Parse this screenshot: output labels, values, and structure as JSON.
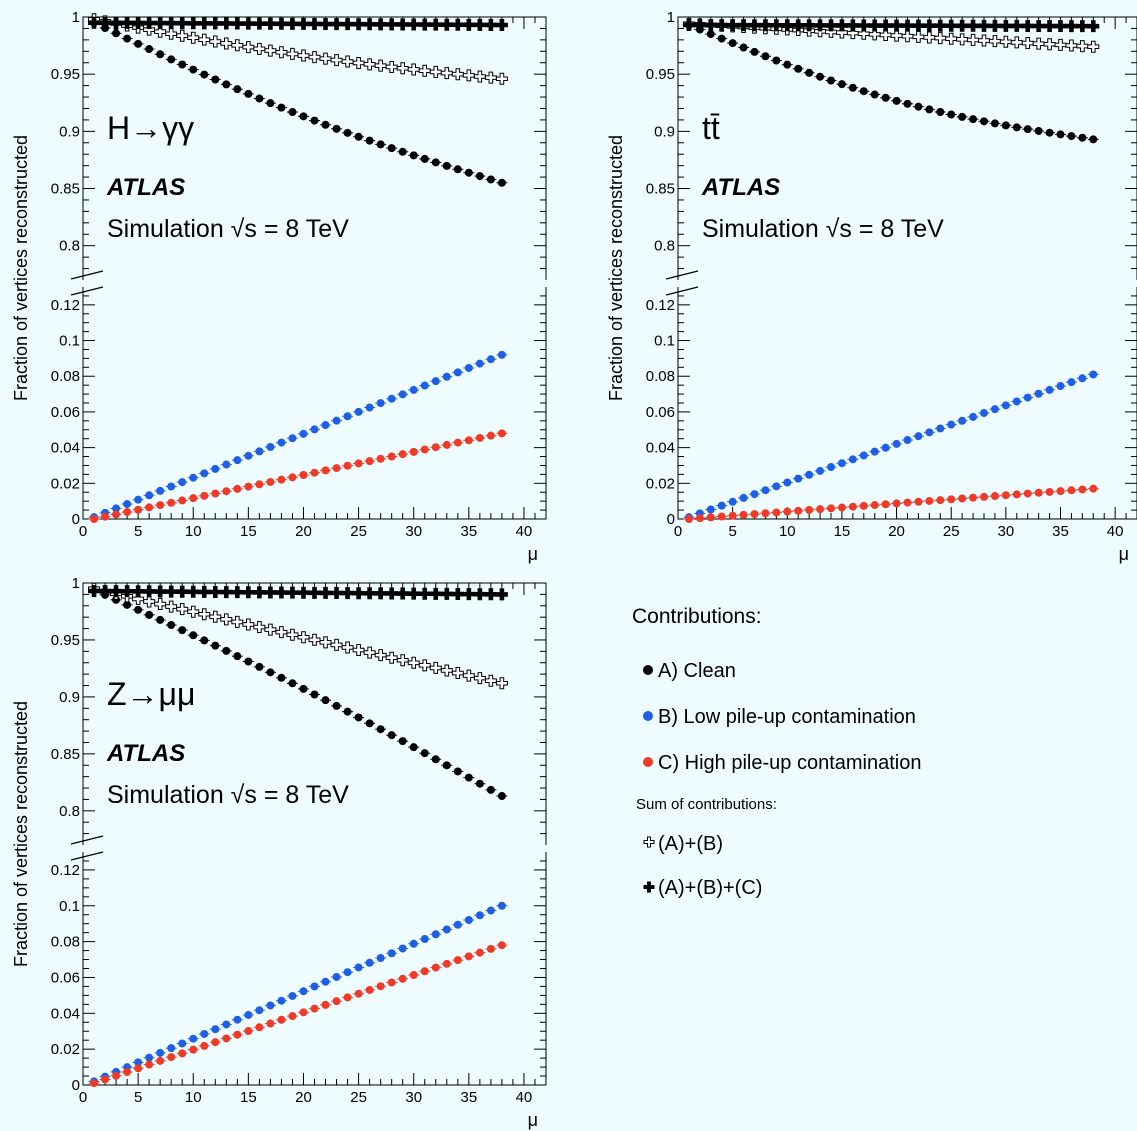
{
  "colors": {
    "clean": "#000000",
    "low": "#1f5fe6",
    "high": "#f03a28",
    "background": "#eefcff"
  },
  "legend": {
    "title": "Contributions:",
    "items": [
      {
        "marker": "filled-circle",
        "color": "#000000",
        "label": "A) Clean"
      },
      {
        "marker": "filled-circle",
        "color": "#1f5fe6",
        "label": "B) Low pile-up contamination"
      },
      {
        "marker": "filled-circle",
        "color": "#f03a28",
        "label": "C) High pile-up contamination"
      }
    ],
    "sum_title": "Sum of contributions:",
    "sum_items": [
      {
        "marker": "open-cross",
        "label": "(A)+(B)"
      },
      {
        "marker": "filled-cross",
        "label": "(A)+(B)+(C)"
      }
    ]
  },
  "chart_data": [
    {
      "type": "scatter",
      "process": "H→γγ",
      "atlas": "ATLAS",
      "simulation": "Simulation √s = 8 TeV",
      "xlabel": "μ",
      "ylabel": "Fraction of vertices reconstructed",
      "xlim": [
        0,
        42
      ],
      "ylim_upper": [
        0.77,
        1.0
      ],
      "ylim_lower": [
        0,
        0.13
      ],
      "xticks": [
        "0",
        "5",
        "10",
        "15",
        "20",
        "25",
        "30",
        "35",
        "40"
      ],
      "yticks_upper": [
        "0.8",
        "0.85",
        "0.9",
        "0.95",
        "1"
      ],
      "yticks_lower": [
        "0",
        "0.02",
        "0.04",
        "0.06",
        "0.08",
        "0.1",
        "0.12"
      ],
      "series": [
        {
          "name": "A) Clean",
          "marker": "filled-circle",
          "color": "#000000",
          "x_start": 1,
          "x_end": 38,
          "y_start": 0.995,
          "y_end": 0.855,
          "curve": -0.01
        },
        {
          "name": "(A)+(B)",
          "marker": "open-cross",
          "color": "#000000",
          "x_start": 1,
          "x_end": 38,
          "y_start": 0.998,
          "y_end": 0.946,
          "curve": -0.005
        },
        {
          "name": "(A)+(B)+(C)",
          "marker": "filled-cross",
          "color": "#000000",
          "x_start": 1,
          "x_end": 38,
          "y_start": 0.995,
          "y_end": 0.993,
          "curve": 0
        },
        {
          "name": "B) Low pile-up contamination",
          "marker": "filled-circle",
          "color": "#1f5fe6",
          "x_start": 1,
          "x_end": 38,
          "y_start": 0.001,
          "y_end": 0.092,
          "curve": 0
        },
        {
          "name": "C) High pile-up contamination",
          "marker": "filled-circle",
          "color": "#f03a28",
          "x_start": 1,
          "x_end": 38,
          "y_start": 0.0,
          "y_end": 0.048,
          "curve": 0
        }
      ]
    },
    {
      "type": "scatter",
      "process": "tt̄",
      "atlas": "ATLAS",
      "simulation": "Simulation √s = 8 TeV",
      "xlabel": "μ",
      "ylabel": "Fraction of vertices reconstructed",
      "xlim": [
        0,
        42
      ],
      "ylim_upper": [
        0.77,
        1.0
      ],
      "ylim_lower": [
        0,
        0.13
      ],
      "xticks": [
        "0",
        "5",
        "10",
        "15",
        "20",
        "25",
        "30",
        "35",
        "40"
      ],
      "yticks_upper": [
        "0.8",
        "0.85",
        "0.9",
        "0.95",
        "1"
      ],
      "yticks_lower": [
        "0",
        "0.02",
        "0.04",
        "0.06",
        "0.08",
        "0.1",
        "0.12"
      ],
      "series": [
        {
          "name": "A) Clean",
          "marker": "filled-circle",
          "color": "#000000",
          "x_start": 1,
          "x_end": 38,
          "y_start": 0.993,
          "y_end": 0.893,
          "curve": -0.015
        },
        {
          "name": "(A)+(B)",
          "marker": "open-cross",
          "color": "#000000",
          "x_start": 1,
          "x_end": 38,
          "y_start": 0.994,
          "y_end": 0.974,
          "curve": 0
        },
        {
          "name": "(A)+(B)+(C)",
          "marker": "filled-cross",
          "color": "#000000",
          "x_start": 1,
          "x_end": 38,
          "y_start": 0.993,
          "y_end": 0.992,
          "curve": 0
        },
        {
          "name": "B) Low pile-up contamination",
          "marker": "filled-circle",
          "color": "#1f5fe6",
          "x_start": 1,
          "x_end": 38,
          "y_start": 0.001,
          "y_end": 0.081,
          "curve": 0
        },
        {
          "name": "C) High pile-up contamination",
          "marker": "filled-circle",
          "color": "#f03a28",
          "x_start": 1,
          "x_end": 38,
          "y_start": 0.0,
          "y_end": 0.017,
          "curve": 0
        }
      ]
    },
    {
      "type": "scatter",
      "process": "Z→μμ",
      "atlas": "ATLAS",
      "simulation": "Simulation √s = 8 TeV",
      "xlabel": "μ",
      "ylabel": "Fraction of vertices reconstructed",
      "xlim": [
        0,
        42
      ],
      "ylim_upper": [
        0.77,
        1.0
      ],
      "ylim_lower": [
        0,
        0.13
      ],
      "xticks": [
        "0",
        "5",
        "10",
        "15",
        "20",
        "25",
        "30",
        "35",
        "40"
      ],
      "yticks_upper": [
        "0.8",
        "0.85",
        "0.9",
        "0.95",
        "1"
      ],
      "yticks_lower": [
        "0",
        "0.02",
        "0.04",
        "0.06",
        "0.08",
        "0.1",
        "0.12"
      ],
      "series": [
        {
          "name": "A) Clean",
          "marker": "filled-circle",
          "color": "#000000",
          "x_start": 1,
          "x_end": 38,
          "y_start": 0.994,
          "y_end": 0.813,
          "curve": 0.006
        },
        {
          "name": "(A)+(B)",
          "marker": "open-cross",
          "color": "#000000",
          "x_start": 1,
          "x_end": 38,
          "y_start": 0.995,
          "y_end": 0.912,
          "curve": 0
        },
        {
          "name": "(A)+(B)+(C)",
          "marker": "filled-cross",
          "color": "#000000",
          "x_start": 1,
          "x_end": 38,
          "y_start": 0.993,
          "y_end": 0.99,
          "curve": 0
        },
        {
          "name": "B) Low pile-up contamination",
          "marker": "filled-circle",
          "color": "#1f5fe6",
          "x_start": 1,
          "x_end": 38,
          "y_start": 0.002,
          "y_end": 0.1,
          "curve": 0
        },
        {
          "name": "C) High pile-up contamination",
          "marker": "filled-circle",
          "color": "#f03a28",
          "x_start": 1,
          "x_end": 38,
          "y_start": 0.001,
          "y_end": 0.078,
          "curve": 0
        }
      ]
    }
  ]
}
